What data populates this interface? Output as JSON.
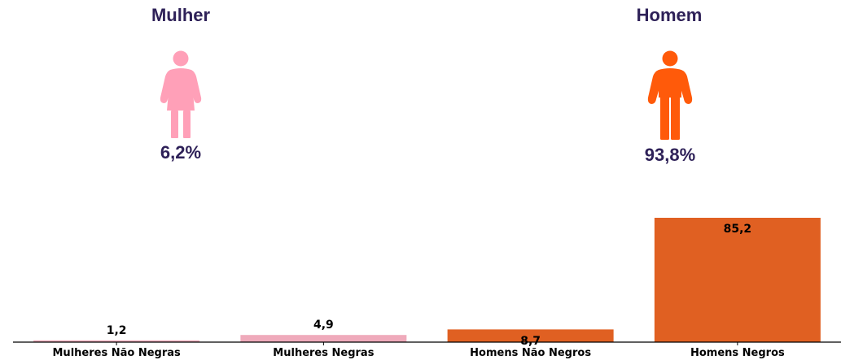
{
  "groups": {
    "female": {
      "title": "Mulher",
      "percent": "6,2%",
      "icon": "woman-icon",
      "color": "#ffa0b8"
    },
    "male": {
      "title": "Homem",
      "percent": "93,8%",
      "icon": "man-icon",
      "color": "#ff5a0a"
    }
  },
  "colors": {
    "title": "#2e2158",
    "female_bar": "#efaabb",
    "male_bar": "#e06022",
    "axis": "#000000"
  },
  "chart_data": {
    "type": "bar",
    "categories": [
      "Mulheres Não Negras",
      "Mulheres Negras",
      "Homens Não Negros",
      "Homens Negros"
    ],
    "values": [
      1.2,
      4.9,
      8.7,
      85.2
    ],
    "value_labels": [
      "1,2",
      "4,9",
      "8,7",
      "85,2"
    ],
    "bar_colors": [
      "#efaabb",
      "#efaabb",
      "#e06022",
      "#e06022"
    ],
    "title": "",
    "xlabel": "",
    "ylabel": "",
    "ylim": [
      0,
      85.2
    ],
    "grid": false
  }
}
